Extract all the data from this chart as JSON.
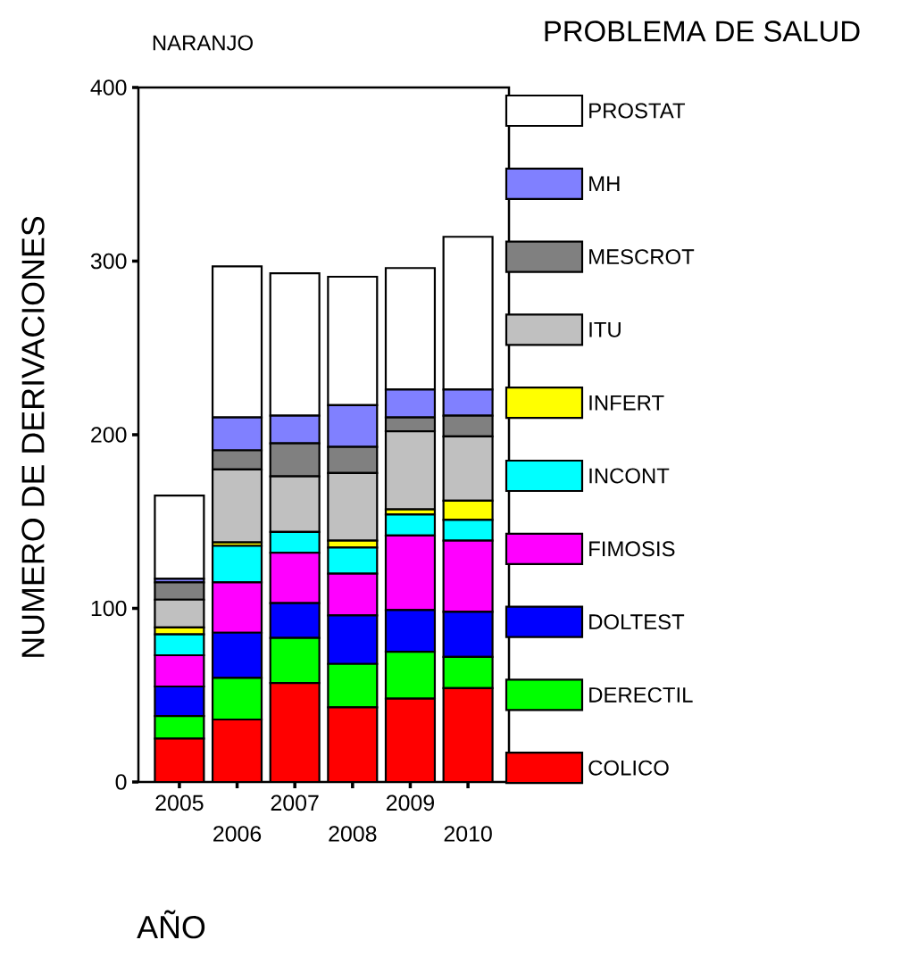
{
  "chart_data": {
    "type": "bar",
    "stacked": true,
    "title": "NARANJO",
    "legend_title": "PROBLEMA DE SALUD",
    "xlabel": "AÑO",
    "ylabel": "NUMERO DE DERIVACIONES",
    "categories": [
      "2005",
      "2006",
      "2007",
      "2008",
      "2009",
      "2010"
    ],
    "series": [
      {
        "name": "COLICO",
        "color": "#ff0000",
        "values": [
          25,
          36,
          57,
          43,
          48,
          54
        ]
      },
      {
        "name": "DERECTIL",
        "color": "#00ff00",
        "values": [
          13,
          24,
          26,
          25,
          27,
          18
        ]
      },
      {
        "name": "DOLTEST",
        "color": "#0000ff",
        "values": [
          17,
          26,
          20,
          28,
          24,
          26
        ]
      },
      {
        "name": "FIMOSIS",
        "color": "#ff00ff",
        "values": [
          18,
          29,
          29,
          24,
          43,
          41
        ]
      },
      {
        "name": "INCONT",
        "color": "#00ffff",
        "values": [
          12,
          21,
          12,
          15,
          12,
          12
        ]
      },
      {
        "name": "INFERT",
        "color": "#ffff00",
        "values": [
          4,
          2,
          0,
          4,
          3,
          11
        ]
      },
      {
        "name": "ITU",
        "color": "#c0c0c0",
        "values": [
          16,
          42,
          32,
          39,
          45,
          37
        ]
      },
      {
        "name": "MESCROT",
        "color": "#808080",
        "values": [
          10,
          11,
          19,
          15,
          8,
          12
        ]
      },
      {
        "name": "MH",
        "color": "#8080ff",
        "values": [
          2,
          19,
          16,
          24,
          16,
          15
        ]
      },
      {
        "name": "PROSTAT",
        "color": "#ffffff",
        "values": [
          48,
          87,
          82,
          74,
          70,
          88
        ]
      }
    ],
    "ylim": [
      0,
      400
    ],
    "yticks": [
      0,
      100,
      200,
      300,
      400
    ],
    "legend": "right"
  }
}
